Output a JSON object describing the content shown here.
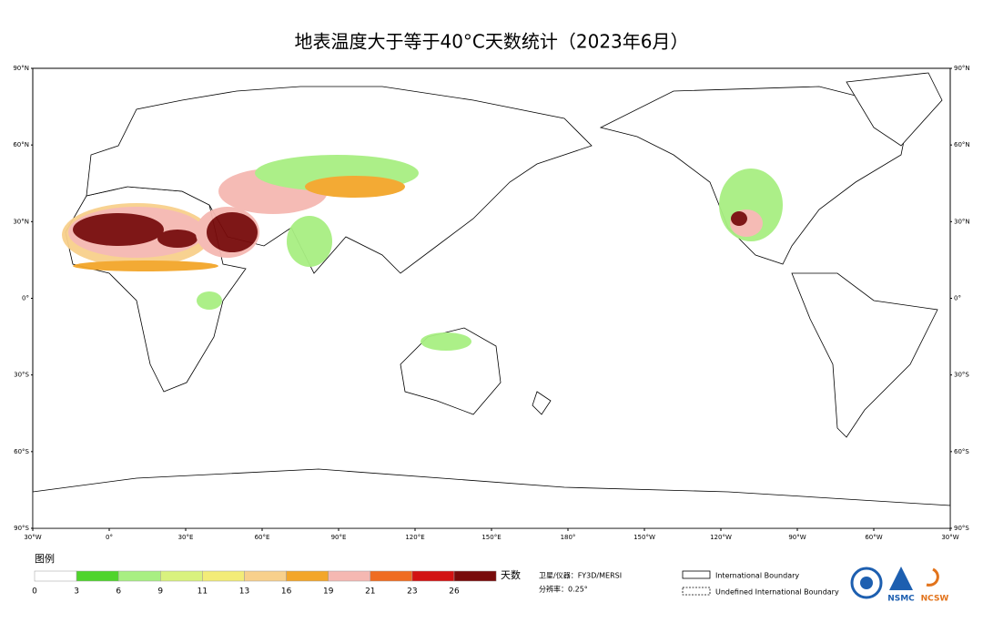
{
  "title": "地表温度大于等于40°C天数统计（2023年6月）",
  "lat_labels": [
    "90°N",
    "60°N",
    "30°N",
    "0°",
    "30°S",
    "60°S",
    "90°S"
  ],
  "lon_labels": [
    "30°W",
    "0°",
    "30°E",
    "60°E",
    "90°E",
    "120°E",
    "150°E",
    "180°",
    "150°W",
    "120°W",
    "90°W",
    "60°W",
    "30°W"
  ],
  "legend": {
    "title": "图例",
    "unit": "天数",
    "breaks": [
      0,
      3,
      6,
      9,
      11,
      13,
      16,
      19,
      21,
      23,
      26
    ],
    "colors": [
      "#ffffff",
      "#4fd42c",
      "#a8ef82",
      "#d9f27e",
      "#f3ec78",
      "#f8d08c",
      "#f3a62a",
      "#f5b8b2",
      "#ef6c21",
      "#d21313",
      "#780b0b"
    ]
  },
  "info": {
    "satellite": "卫星/仪器：FY3D/MERSI",
    "resolution": "分辨率：0.25°"
  },
  "boundary_legend": [
    "International Boundary",
    "Undefined International Boundary"
  ],
  "logos": [
    "NSMC",
    "NCSW"
  ]
}
